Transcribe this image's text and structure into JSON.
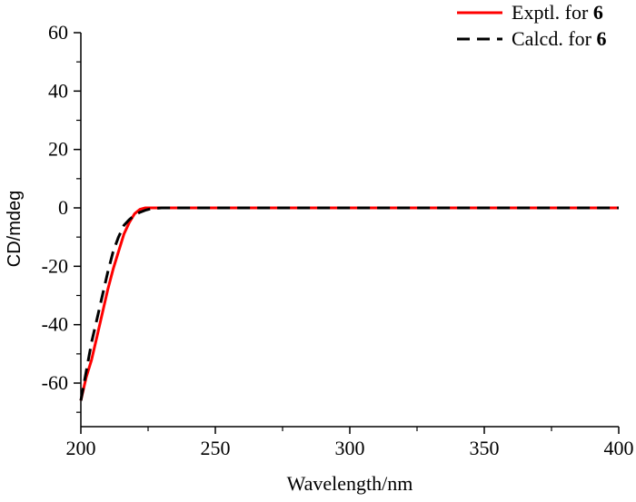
{
  "chart_data": {
    "type": "line",
    "title": "",
    "xlabel": "Wavelength/nm",
    "ylabel": "CD/mdeg",
    "xlim": [
      200,
      400
    ],
    "ylim": [
      -75,
      60
    ],
    "x_ticks": [
      200,
      250,
      300,
      350,
      400
    ],
    "y_ticks": [
      60,
      40,
      20,
      0,
      -20,
      -40,
      -60
    ],
    "x_tick_labels": [
      "200",
      "250",
      "300",
      "350",
      "400"
    ],
    "y_tick_labels": [
      "60",
      "40",
      "20",
      "0",
      "-20",
      "-40",
      "-60"
    ],
    "grid": false,
    "legend_position": "top-right",
    "series": [
      {
        "name": "Exptl. for 6",
        "legend_prefix": "Exptl. for ",
        "legend_bold": "6",
        "color": "#ff0000",
        "dash": "solid",
        "x": [
          200,
          202,
          204,
          206,
          208,
          210,
          212,
          214,
          216,
          218,
          220,
          222,
          224,
          226,
          230,
          260,
          300,
          340,
          380,
          400
        ],
        "y": [
          -66,
          -58,
          -52,
          -44,
          -36,
          -28,
          -21,
          -15,
          -9,
          -5,
          -2,
          -0.5,
          0,
          0,
          0,
          0,
          0,
          0,
          0,
          0
        ]
      },
      {
        "name": "Calcd. for 6",
        "legend_prefix": "Calcd. for ",
        "legend_bold": "6",
        "color": "#000000",
        "dash": "dashed",
        "x": [
          200,
          202,
          204,
          206,
          208,
          210,
          212,
          214,
          216,
          218,
          220,
          222,
          224,
          226,
          230,
          260,
          300,
          340,
          380,
          400
        ],
        "y": [
          -66,
          -56,
          -46,
          -38,
          -30,
          -22,
          -15,
          -10,
          -6,
          -4,
          -2.5,
          -1.5,
          -0.8,
          -0.3,
          0,
          0,
          0,
          0,
          0,
          0
        ]
      }
    ]
  }
}
